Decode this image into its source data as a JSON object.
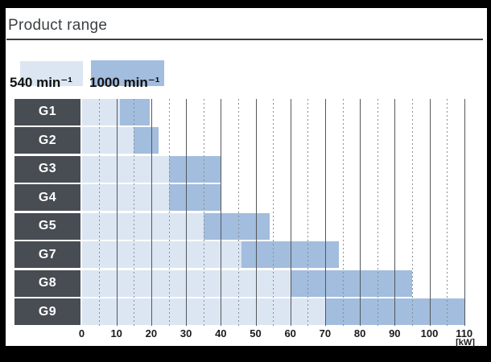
{
  "header": {
    "title": "Product range"
  },
  "colors": {
    "frame_background": "#000000",
    "panel_background": "#ffffff",
    "row_label_box": "#484d53",
    "series_540": "#dce6f2",
    "series_1000": "#a2bddd",
    "grid_solid": "#54575b",
    "grid_dashed": "#8b8f94",
    "title_text": "#3c4043"
  },
  "chart_data": {
    "type": "bar",
    "subtype": "horizontal-range",
    "title": "Product range",
    "categories": [
      "G1",
      "G2",
      "G3",
      "G4",
      "G5",
      "G7",
      "G8",
      "G9"
    ],
    "series": [
      {
        "name": "540 min⁻¹",
        "color": "#dce6f2",
        "ranges_kw": [
          [
            0,
            11
          ],
          [
            0,
            15
          ],
          [
            0,
            25
          ],
          [
            0,
            25
          ],
          [
            0,
            35
          ],
          [
            0,
            46
          ],
          [
            0,
            60
          ],
          [
            0,
            70
          ]
        ]
      },
      {
        "name": "1000 min⁻¹",
        "color": "#a2bddd",
        "ranges_kw": [
          [
            11,
            19.5
          ],
          [
            15,
            22
          ],
          [
            25,
            40
          ],
          [
            25,
            40
          ],
          [
            35,
            54
          ],
          [
            46,
            74
          ],
          [
            60,
            95
          ],
          [
            70,
            110
          ]
        ]
      }
    ],
    "xlim": [
      0,
      110
    ],
    "x_ticks": [
      0,
      10,
      20,
      30,
      40,
      50,
      60,
      70,
      80,
      90,
      100,
      110
    ],
    "x_minor_dashed_ticks": [
      5,
      15,
      25,
      35,
      45,
      55,
      65,
      75,
      85,
      95,
      105
    ],
    "unit_label": "[kW]",
    "grid": "vertical; solid lines at multiples of 10, dashed lines at odd multiples of 5",
    "legend_position": "top-left"
  }
}
